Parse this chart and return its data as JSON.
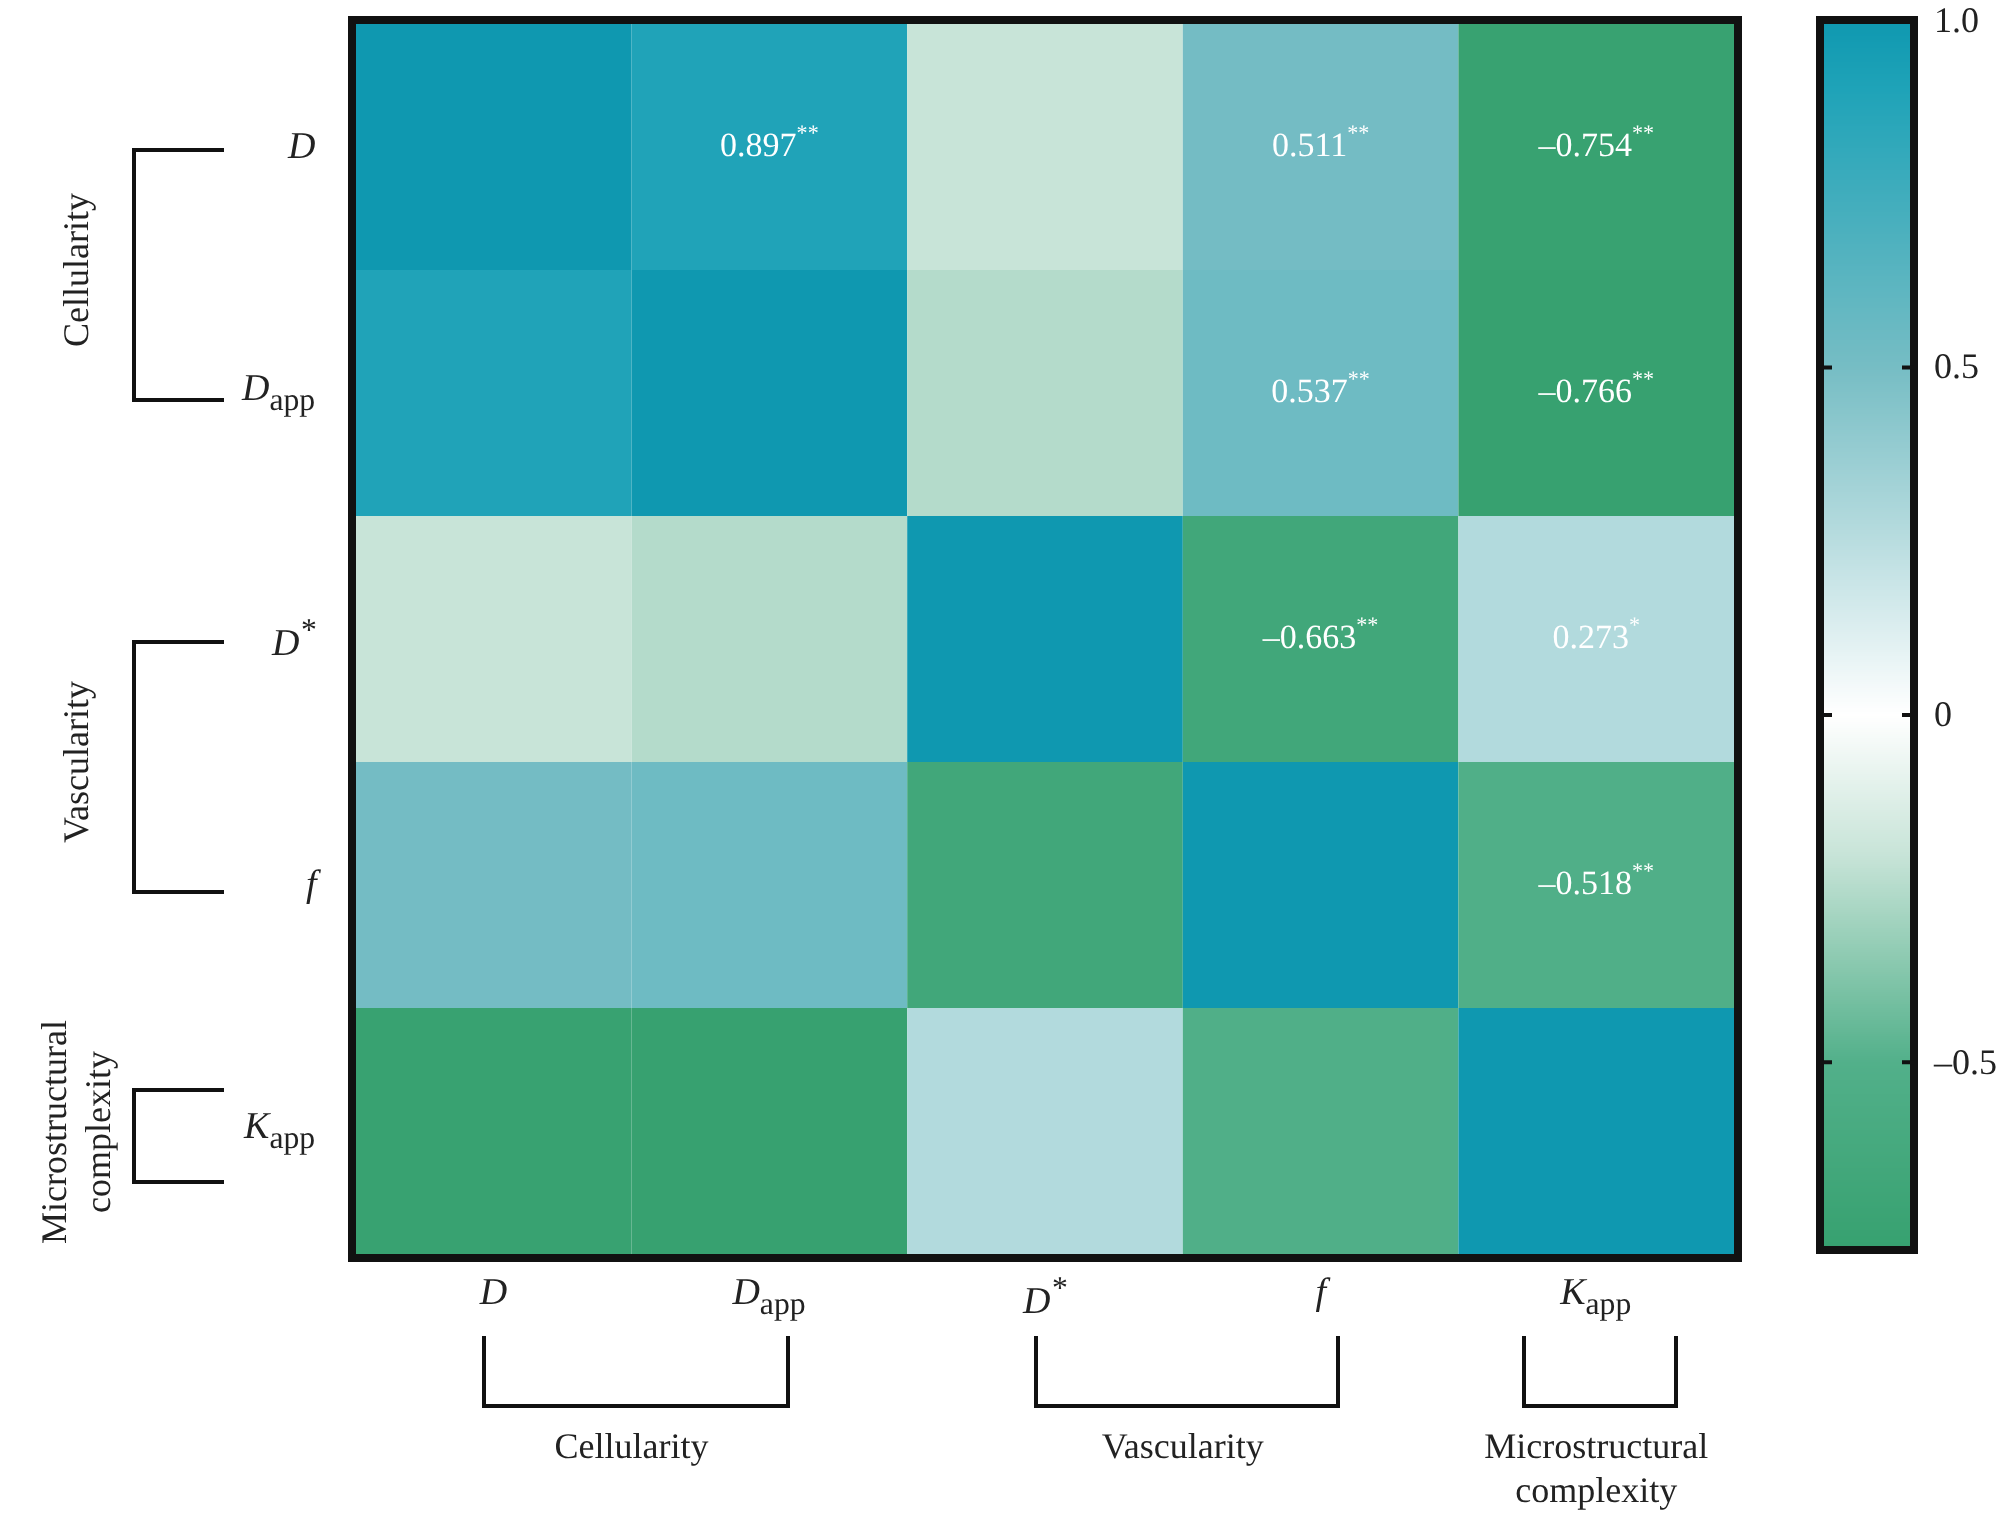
{
  "chart_data": {
    "type": "heatmap",
    "categories": [
      "D",
      "D$_{app}$",
      "D$^{*}$",
      "f",
      "K$_{app}$"
    ],
    "y_categories": [
      "D",
      "D$_{app}$",
      "D$^{*}$",
      "f",
      "K$_{app}$"
    ],
    "cells": [
      [
        1,
        0.897,
        -0.2,
        0.511,
        -0.754
      ],
      [
        0.897,
        1,
        -0.25,
        0.537,
        -0.766
      ],
      [
        -0.2,
        -0.25,
        1,
        -0.663,
        0.273
      ],
      [
        0.511,
        0.537,
        -0.663,
        1,
        -0.518
      ],
      [
        -0.754,
        -0.766,
        0.273,
        -0.518,
        1
      ]
    ],
    "cell_labels": [
      [
        null,
        "0.897$^{**}$",
        null,
        "0.511$^{**}$",
        "–0.754$^{**}$"
      ],
      [
        null,
        null,
        null,
        "0.537$^{**}$",
        "–0.766$^{**}$"
      ],
      [
        null,
        null,
        null,
        "–0.663$^{**}$",
        "0.273$^{*}$"
      ],
      [
        null,
        null,
        null,
        null,
        "–0.518$^{**}$"
      ],
      [
        null,
        null,
        null,
        null,
        null
      ]
    ],
    "clim": [
      -0.77,
      1
    ],
    "cticks": [
      {
        "value": 1,
        "label": "1.0"
      },
      0.5,
      0,
      {
        "value": -0.5,
        "label": "–0.5"
      }
    ],
    "annotations": [
      "Cellularity",
      "Vascularity",
      "Microstructural complexity",
      "Cellularity",
      "Vascularity",
      "Microstructural complexity"
    ]
  }
}
